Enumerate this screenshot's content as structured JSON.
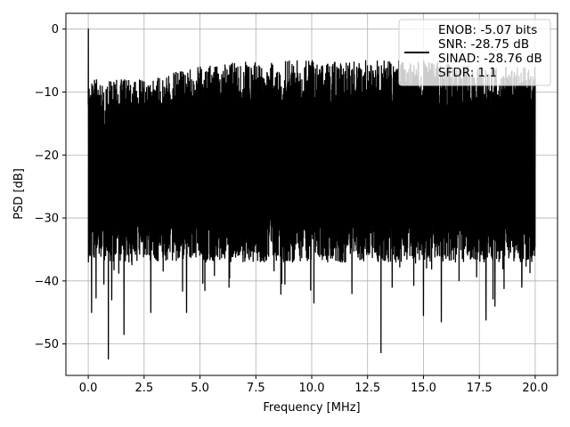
{
  "chart_data": {
    "type": "line",
    "title": "",
    "xlabel": "Frequency [MHz]",
    "ylabel": "PSD [dB]",
    "xlim": [
      -1.0,
      21.0
    ],
    "ylim": [
      -55,
      2.5
    ],
    "xticks": [
      0.0,
      2.5,
      5.0,
      7.5,
      10.0,
      12.5,
      15.0,
      17.5,
      20.0
    ],
    "xtick_labels": [
      "0.0",
      "2.5",
      "5.0",
      "7.5",
      "10.0",
      "12.5",
      "15.0",
      "17.5",
      "20.0"
    ],
    "yticks": [
      0,
      -10,
      -20,
      -30,
      -40,
      -50
    ],
    "ytick_labels": [
      "0",
      "−10",
      "−20",
      "−30",
      "−40",
      "−50"
    ],
    "grid": true,
    "legend_position": "top-right",
    "line_color": "#000000",
    "series": [
      {
        "name": "ENOB: -5.07 bits\nSNR: -28.75 dB\nSINAD: -28.76 dB\nSFDR: 1.1",
        "x_range": [
          0.0,
          20.0
        ],
        "peak": {
          "x": 0.0,
          "y": 0.0
        },
        "typical_band": [
          -33,
          -6
        ],
        "upper_envelope": [
          [
            0,
            -8
          ],
          [
            2.5,
            -8
          ],
          [
            5,
            -6
          ],
          [
            7.5,
            -5
          ],
          [
            10,
            -5
          ],
          [
            12.5,
            -5
          ],
          [
            15,
            -5
          ],
          [
            17.5,
            -6
          ],
          [
            20,
            -6
          ]
        ],
        "deep_minima": [
          {
            "x": 0.15,
            "y": -45.0
          },
          {
            "x": 0.35,
            "y": -42.7
          },
          {
            "x": 0.7,
            "y": -40.5
          },
          {
            "x": 0.9,
            "y": -52.4
          },
          {
            "x": 1.05,
            "y": -43.0
          },
          {
            "x": 1.6,
            "y": -48.5
          },
          {
            "x": 2.8,
            "y": -45.0
          },
          {
            "x": 4.4,
            "y": -45.0
          },
          {
            "x": 6.3,
            "y": -41.0
          },
          {
            "x": 8.8,
            "y": -40.5
          },
          {
            "x": 10.1,
            "y": -43.5
          },
          {
            "x": 11.8,
            "y": -42.0
          },
          {
            "x": 13.1,
            "y": -51.4
          },
          {
            "x": 13.6,
            "y": -41.0
          },
          {
            "x": 15.0,
            "y": -45.5
          },
          {
            "x": 15.8,
            "y": -46.5
          },
          {
            "x": 17.8,
            "y": -46.2
          },
          {
            "x": 18.2,
            "y": -44.0
          },
          {
            "x": 19.4,
            "y": -41.0
          }
        ]
      }
    ]
  }
}
